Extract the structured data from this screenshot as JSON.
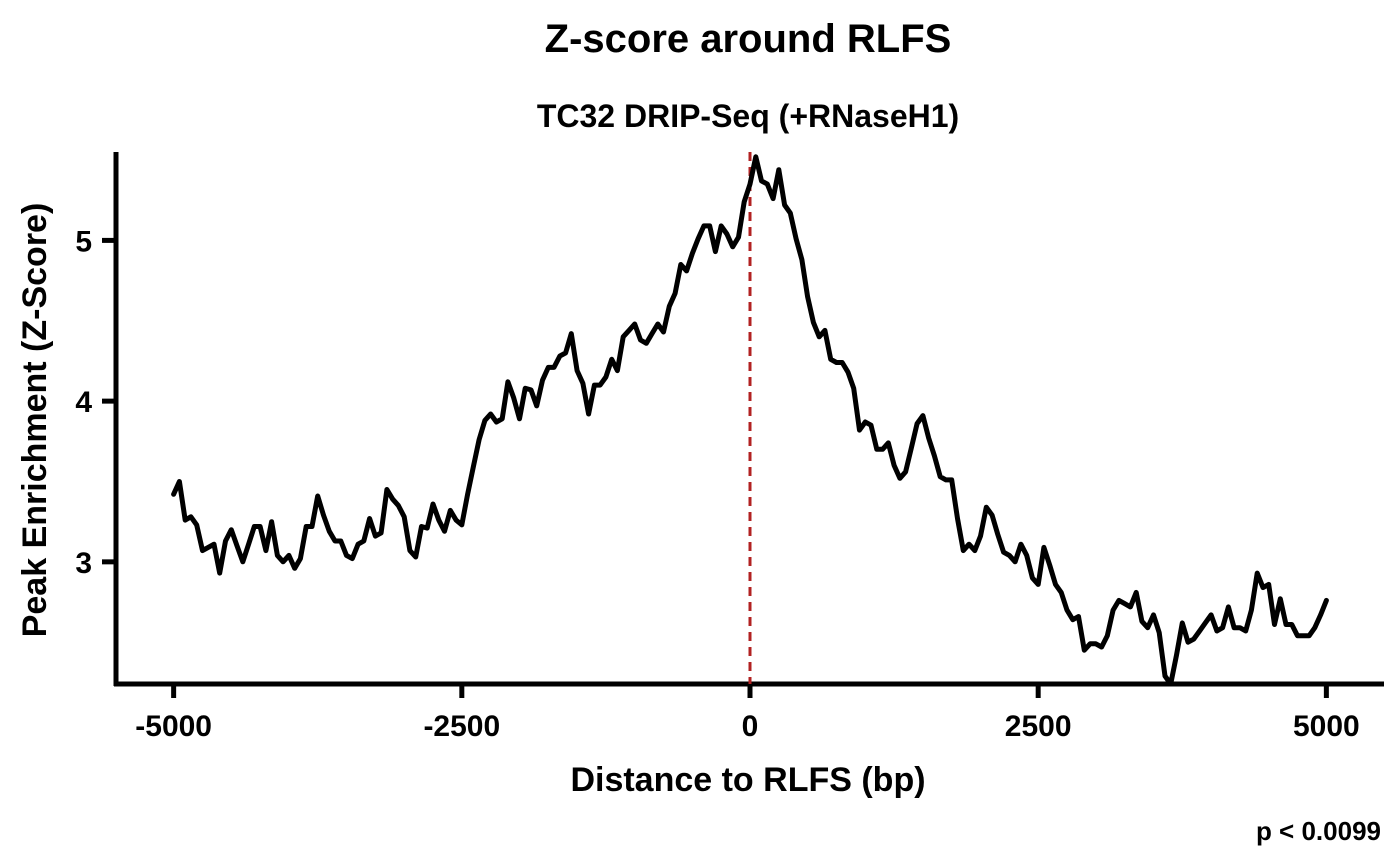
{
  "chart_data": {
    "type": "line",
    "title": "Z-score around RLFS",
    "subtitle": "TC32 DRIP-Seq (+RNaseH1)",
    "xlabel": "Distance to RLFS (bp)",
    "ylabel": "Peak Enrichment (Z-Score)",
    "annotation": "p < 0.0099",
    "xlim": [
      -5500,
      5500
    ],
    "ylim": [
      2.24,
      5.55
    ],
    "x_ticks": [
      -5000,
      -2500,
      0,
      2500,
      5000
    ],
    "x_tick_labels": [
      "-5000",
      "-2500",
      "0",
      "2500",
      "5000"
    ],
    "y_ticks": [
      3,
      4,
      5
    ],
    "y_tick_labels": [
      "3",
      "4",
      "5"
    ],
    "reference_line": {
      "x": 0,
      "style": "dashed",
      "color": "#b22222"
    },
    "line_color": "#000000",
    "grid": false,
    "series": [
      {
        "x": [
          -5000,
          -4950,
          -4900,
          -4850,
          -4800,
          -4750,
          -4700,
          -4650,
          -4600,
          -4550,
          -4500,
          -4450,
          -4400,
          -4350,
          -4300,
          -4250,
          -4200,
          -4150,
          -4100,
          -4050,
          -4000,
          -3950,
          -3900,
          -3850,
          -3800,
          -3750,
          -3700,
          -3650,
          -3600,
          -3550,
          -3500,
          -3450,
          -3400,
          -3350,
          -3300,
          -3250,
          -3200,
          -3150,
          -3100,
          -3050,
          -3000,
          -2950,
          -2900,
          -2850,
          -2800,
          -2750,
          -2700,
          -2650,
          -2600,
          -2550,
          -2500,
          -2450,
          -2400,
          -2350,
          -2300,
          -2250,
          -2200,
          -2150,
          -2100,
          -2050,
          -2000,
          -1950,
          -1900,
          -1850,
          -1800,
          -1750,
          -1700,
          -1650,
          -1600,
          -1550,
          -1500,
          -1450,
          -1400,
          -1350,
          -1300,
          -1250,
          -1200,
          -1150,
          -1100,
          -1050,
          -1000,
          -950,
          -900,
          -850,
          -800,
          -750,
          -700,
          -650,
          -600,
          -550,
          -500,
          -450,
          -400,
          -350,
          -300,
          -250,
          -200,
          -150,
          -100,
          -50,
          0,
          50,
          100,
          150,
          200,
          250,
          300,
          350,
          400,
          450,
          500,
          550,
          600,
          650,
          700,
          750,
          800,
          850,
          900,
          950,
          1000,
          1050,
          1100,
          1150,
          1200,
          1250,
          1300,
          1350,
          1400,
          1450,
          1500,
          1550,
          1600,
          1650,
          1700,
          1750,
          1800,
          1850,
          1900,
          1950,
          2000,
          2050,
          2100,
          2150,
          2200,
          2250,
          2300,
          2350,
          2400,
          2450,
          2500,
          2550,
          2600,
          2650,
          2700,
          2750,
          2800,
          2850,
          2900,
          2950,
          3000,
          3050,
          3100,
          3150,
          3200,
          3250,
          3300,
          3350,
          3400,
          3450,
          3500,
          3550,
          3600,
          3650,
          3700,
          3750,
          3800,
          3850,
          3900,
          3950,
          4000,
          4050,
          4100,
          4150,
          4200,
          4250,
          4300,
          4350,
          4400,
          4450,
          4500,
          4550,
          4600,
          4650,
          4700,
          4750,
          4800,
          4850,
          4900,
          4950,
          5000
        ],
        "y": [
          3.42,
          3.5,
          3.26,
          3.28,
          3.23,
          3.07,
          3.09,
          3.11,
          2.93,
          3.13,
          3.2,
          3.1,
          3.0,
          3.11,
          3.22,
          3.22,
          3.07,
          3.25,
          3.04,
          3.0,
          3.04,
          2.96,
          3.02,
          3.22,
          3.22,
          3.41,
          3.29,
          3.19,
          3.13,
          3.13,
          3.04,
          3.02,
          3.11,
          3.13,
          3.27,
          3.16,
          3.18,
          3.45,
          3.39,
          3.35,
          3.28,
          3.07,
          3.03,
          3.22,
          3.21,
          3.36,
          3.26,
          3.19,
          3.32,
          3.26,
          3.23,
          3.42,
          3.59,
          3.76,
          3.88,
          3.92,
          3.87,
          3.89,
          4.12,
          4.02,
          3.89,
          4.08,
          4.07,
          3.97,
          4.13,
          4.21,
          4.21,
          4.28,
          4.3,
          4.42,
          4.19,
          4.11,
          3.92,
          4.1,
          4.1,
          4.15,
          4.26,
          4.19,
          4.4,
          4.44,
          4.48,
          4.38,
          4.36,
          4.42,
          4.48,
          4.43,
          4.59,
          4.67,
          4.85,
          4.81,
          4.92,
          5.01,
          5.09,
          5.09,
          4.93,
          5.09,
          5.04,
          4.96,
          5.02,
          5.24,
          5.35,
          5.52,
          5.37,
          5.35,
          5.26,
          5.44,
          5.22,
          5.17,
          5.01,
          4.88,
          4.65,
          4.49,
          4.4,
          4.44,
          4.26,
          4.24,
          4.24,
          4.18,
          4.08,
          3.82,
          3.87,
          3.85,
          3.7,
          3.7,
          3.74,
          3.6,
          3.52,
          3.56,
          3.71,
          3.86,
          3.91,
          3.77,
          3.66,
          3.53,
          3.51,
          3.51,
          3.27,
          3.07,
          3.11,
          3.07,
          3.16,
          3.34,
          3.29,
          3.17,
          3.06,
          3.04,
          3.0,
          3.11,
          3.04,
          2.9,
          2.86,
          3.09,
          2.98,
          2.86,
          2.81,
          2.7,
          2.64,
          2.66,
          2.45,
          2.49,
          2.49,
          2.47,
          2.54,
          2.7,
          2.76,
          2.74,
          2.72,
          2.81,
          2.63,
          2.59,
          2.67,
          2.56,
          2.29,
          2.24,
          2.42,
          2.62,
          2.5,
          2.52,
          2.57,
          2.62,
          2.67,
          2.57,
          2.59,
          2.72,
          2.59,
          2.59,
          2.57,
          2.7,
          2.93,
          2.84,
          2.86,
          2.61,
          2.77,
          2.61,
          2.61,
          2.54,
          2.54,
          2.54,
          2.59,
          2.67,
          2.76
        ]
      }
    ]
  }
}
